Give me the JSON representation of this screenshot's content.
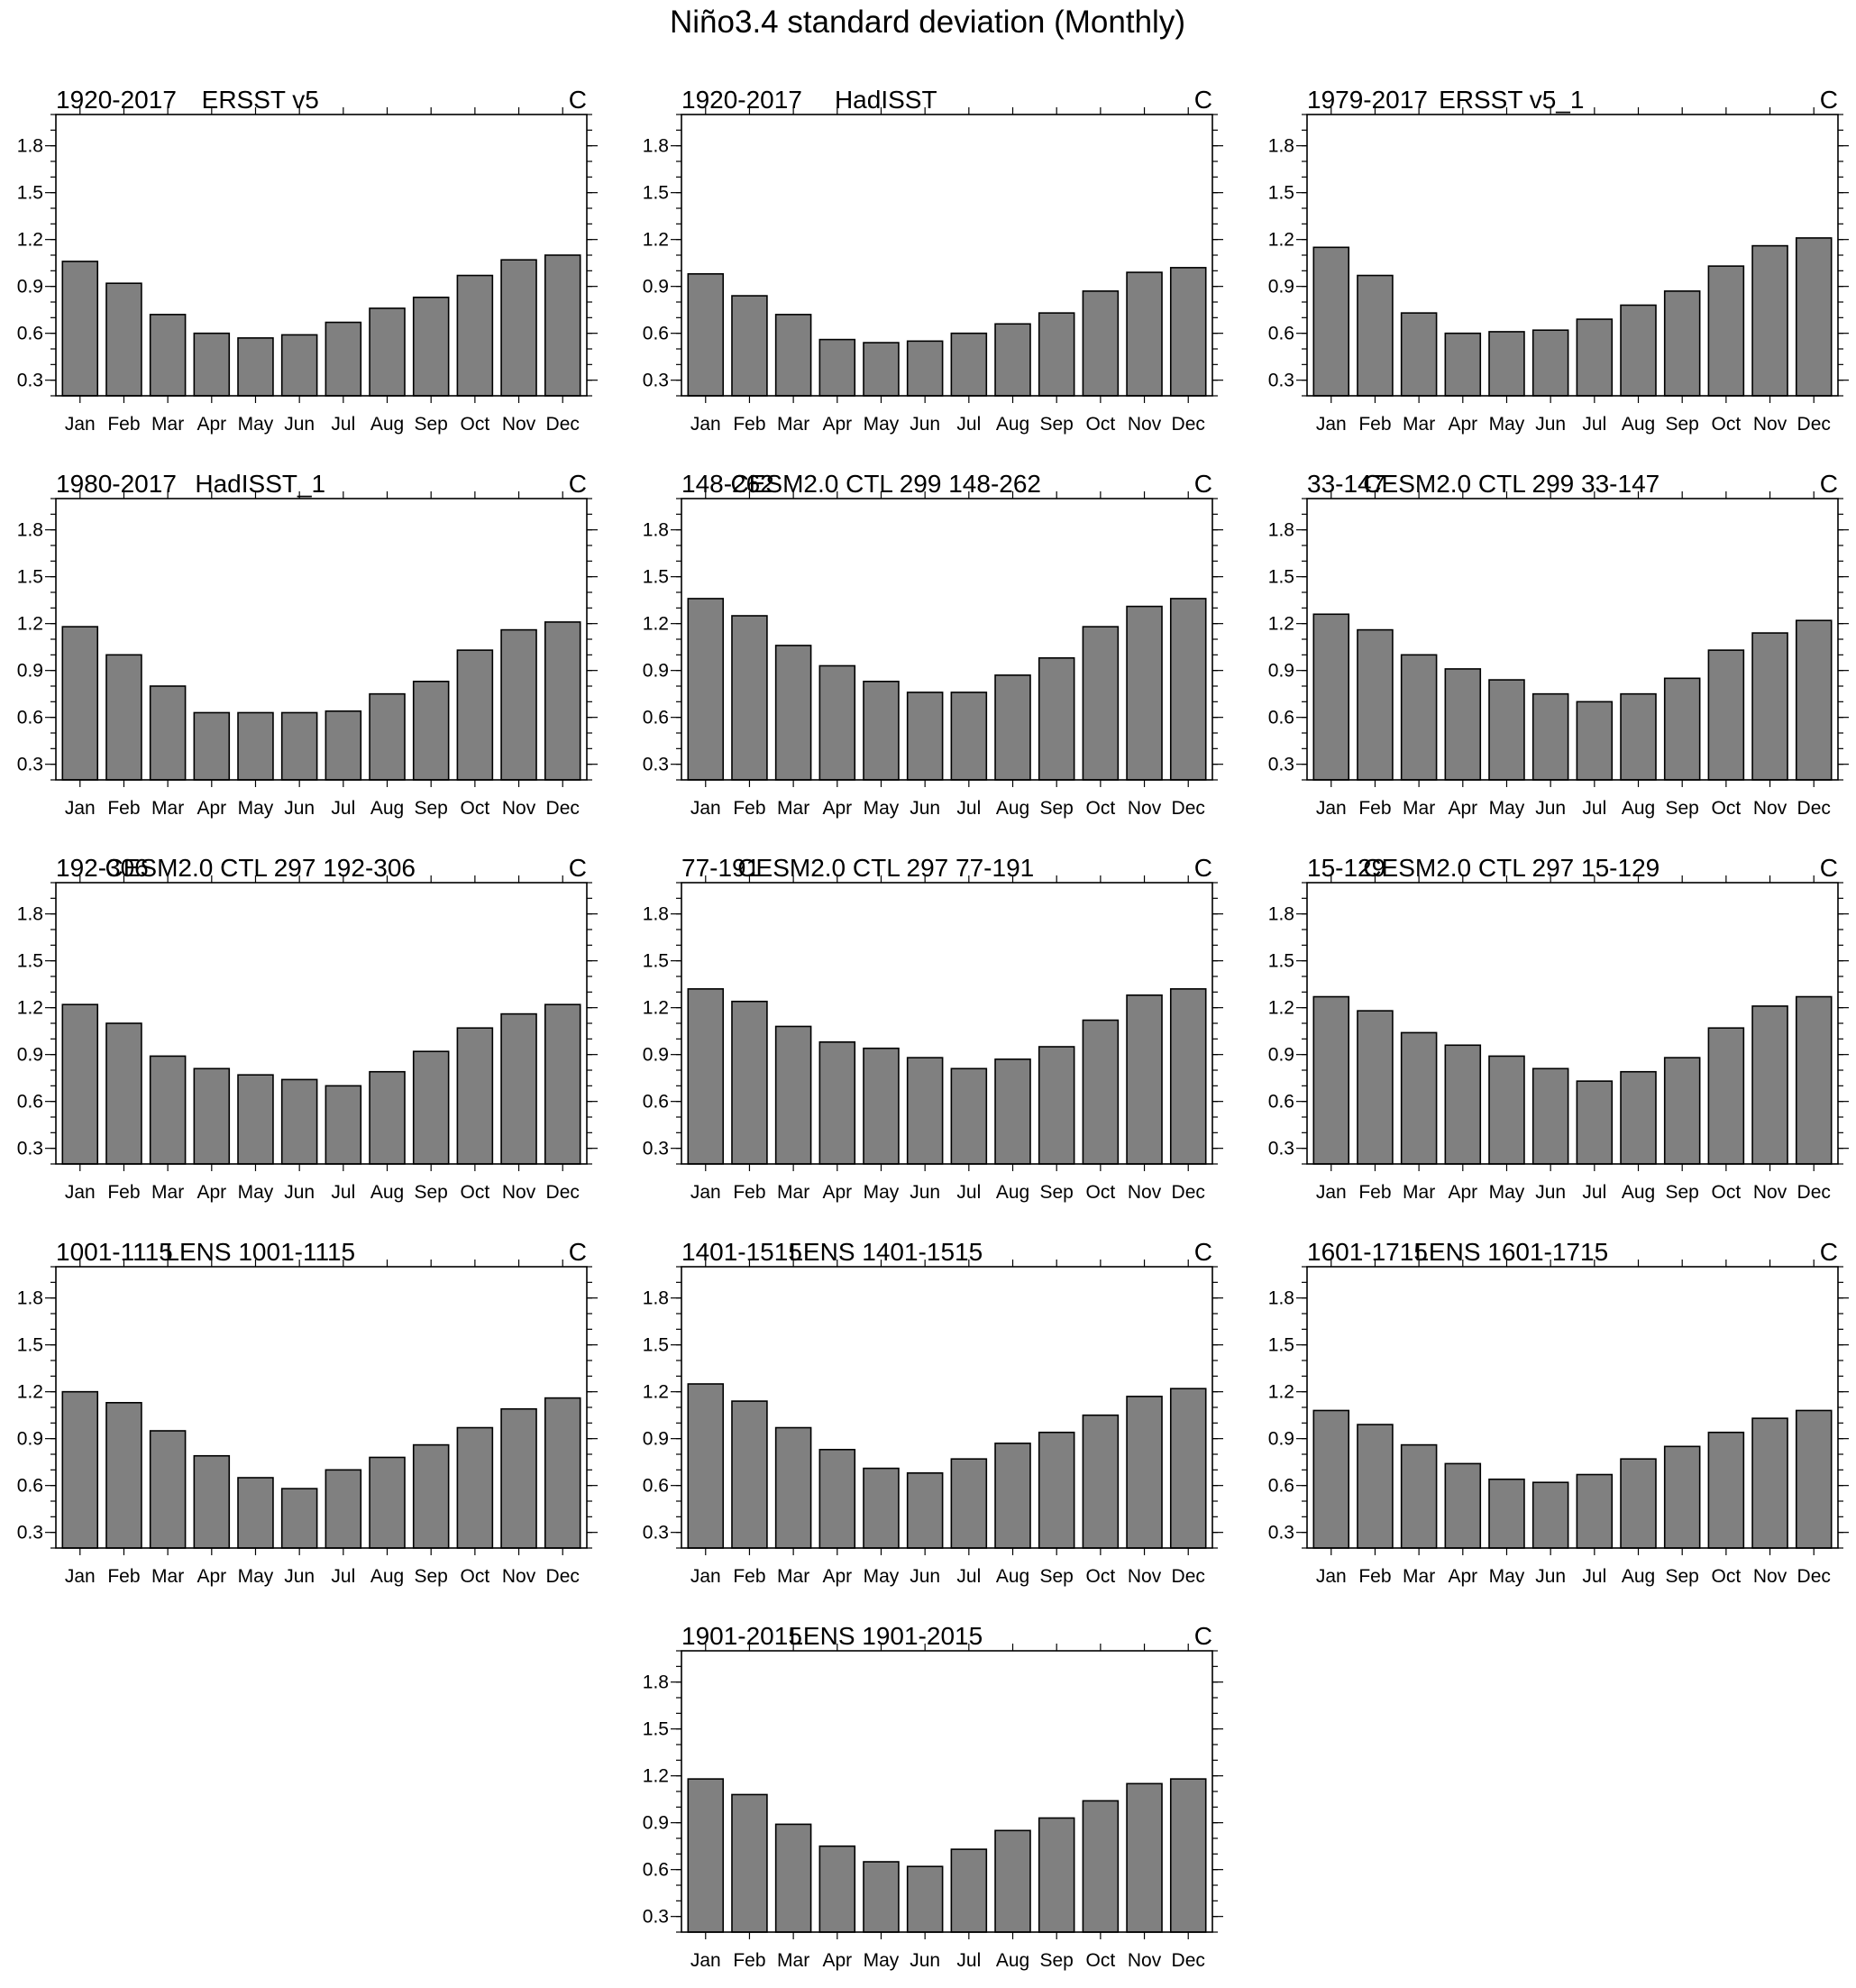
{
  "title": "Niño3.4 standard deviation (Monthly)",
  "chart_data": [
    {
      "type": "bar",
      "period": "1920-2017",
      "title": "ERSST v5",
      "units": "C",
      "ylim": [
        0.2,
        2.0
      ],
      "yticks": [
        "0.3",
        "0.6",
        "0.9",
        "1.2",
        "1.5",
        "1.8"
      ],
      "categories": [
        "Jan",
        "Feb",
        "Mar",
        "Apr",
        "May",
        "Jun",
        "Jul",
        "Aug",
        "Sep",
        "Oct",
        "Nov",
        "Dec"
      ],
      "values": [
        1.06,
        0.92,
        0.72,
        0.6,
        0.57,
        0.59,
        0.67,
        0.76,
        0.83,
        0.97,
        1.07,
        1.1
      ]
    },
    {
      "type": "bar",
      "period": "1920-2017",
      "title": "HadISST",
      "units": "C",
      "ylim": [
        0.2,
        2.0
      ],
      "yticks": [
        "0.3",
        "0.6",
        "0.9",
        "1.2",
        "1.5",
        "1.8"
      ],
      "categories": [
        "Jan",
        "Feb",
        "Mar",
        "Apr",
        "May",
        "Jun",
        "Jul",
        "Aug",
        "Sep",
        "Oct",
        "Nov",
        "Dec"
      ],
      "values": [
        0.98,
        0.84,
        0.72,
        0.56,
        0.54,
        0.55,
        0.6,
        0.66,
        0.73,
        0.87,
        0.99,
        1.02
      ]
    },
    {
      "type": "bar",
      "period": "1979-2017",
      "title": "ERSST v5_1",
      "units": "C",
      "ylim": [
        0.2,
        2.0
      ],
      "yticks": [
        "0.3",
        "0.6",
        "0.9",
        "1.2",
        "1.5",
        "1.8"
      ],
      "categories": [
        "Jan",
        "Feb",
        "Mar",
        "Apr",
        "May",
        "Jun",
        "Jul",
        "Aug",
        "Sep",
        "Oct",
        "Nov",
        "Dec"
      ],
      "values": [
        1.15,
        0.97,
        0.73,
        0.6,
        0.61,
        0.62,
        0.69,
        0.78,
        0.87,
        1.03,
        1.16,
        1.21
      ]
    },
    {
      "type": "bar",
      "period": "1980-2017",
      "title": "HadISST_1",
      "units": "C",
      "ylim": [
        0.2,
        2.0
      ],
      "yticks": [
        "0.3",
        "0.6",
        "0.9",
        "1.2",
        "1.5",
        "1.8"
      ],
      "categories": [
        "Jan",
        "Feb",
        "Mar",
        "Apr",
        "May",
        "Jun",
        "Jul",
        "Aug",
        "Sep",
        "Oct",
        "Nov",
        "Dec"
      ],
      "values": [
        1.18,
        1.0,
        0.8,
        0.63,
        0.63,
        0.63,
        0.64,
        0.75,
        0.83,
        1.03,
        1.16,
        1.21
      ]
    },
    {
      "type": "bar",
      "period": "148-262",
      "title": "CESM2.0 CTL 299 148-262",
      "units": "C",
      "ylim": [
        0.2,
        2.0
      ],
      "yticks": [
        "0.3",
        "0.6",
        "0.9",
        "1.2",
        "1.5",
        "1.8"
      ],
      "categories": [
        "Jan",
        "Feb",
        "Mar",
        "Apr",
        "May",
        "Jun",
        "Jul",
        "Aug",
        "Sep",
        "Oct",
        "Nov",
        "Dec"
      ],
      "values": [
        1.36,
        1.25,
        1.06,
        0.93,
        0.83,
        0.76,
        0.76,
        0.87,
        0.98,
        1.18,
        1.31,
        1.36
      ]
    },
    {
      "type": "bar",
      "period": "33-147",
      "title": "CESM2.0 CTL 299 33-147",
      "units": "C",
      "ylim": [
        0.2,
        2.0
      ],
      "yticks": [
        "0.3",
        "0.6",
        "0.9",
        "1.2",
        "1.5",
        "1.8"
      ],
      "categories": [
        "Jan",
        "Feb",
        "Mar",
        "Apr",
        "May",
        "Jun",
        "Jul",
        "Aug",
        "Sep",
        "Oct",
        "Nov",
        "Dec"
      ],
      "values": [
        1.26,
        1.16,
        1.0,
        0.91,
        0.84,
        0.75,
        0.7,
        0.75,
        0.85,
        1.03,
        1.14,
        1.22
      ]
    },
    {
      "type": "bar",
      "period": "192-306",
      "title": "CESM2.0 CTL 297 192-306",
      "units": "C",
      "ylim": [
        0.2,
        2.0
      ],
      "yticks": [
        "0.3",
        "0.6",
        "0.9",
        "1.2",
        "1.5",
        "1.8"
      ],
      "categories": [
        "Jan",
        "Feb",
        "Mar",
        "Apr",
        "May",
        "Jun",
        "Jul",
        "Aug",
        "Sep",
        "Oct",
        "Nov",
        "Dec"
      ],
      "values": [
        1.22,
        1.1,
        0.89,
        0.81,
        0.77,
        0.74,
        0.7,
        0.79,
        0.92,
        1.07,
        1.16,
        1.22
      ]
    },
    {
      "type": "bar",
      "period": "77-191",
      "title": "CESM2.0 CTL 297 77-191",
      "units": "C",
      "ylim": [
        0.2,
        2.0
      ],
      "yticks": [
        "0.3",
        "0.6",
        "0.9",
        "1.2",
        "1.5",
        "1.8"
      ],
      "categories": [
        "Jan",
        "Feb",
        "Mar",
        "Apr",
        "May",
        "Jun",
        "Jul",
        "Aug",
        "Sep",
        "Oct",
        "Nov",
        "Dec"
      ],
      "values": [
        1.32,
        1.24,
        1.08,
        0.98,
        0.94,
        0.88,
        0.81,
        0.87,
        0.95,
        1.12,
        1.28,
        1.32
      ]
    },
    {
      "type": "bar",
      "period": "15-129",
      "title": "CESM2.0 CTL 297 15-129",
      "units": "C",
      "ylim": [
        0.2,
        2.0
      ],
      "yticks": [
        "0.3",
        "0.6",
        "0.9",
        "1.2",
        "1.5",
        "1.8"
      ],
      "categories": [
        "Jan",
        "Feb",
        "Mar",
        "Apr",
        "May",
        "Jun",
        "Jul",
        "Aug",
        "Sep",
        "Oct",
        "Nov",
        "Dec"
      ],
      "values": [
        1.27,
        1.18,
        1.04,
        0.96,
        0.89,
        0.81,
        0.73,
        0.79,
        0.88,
        1.07,
        1.21,
        1.27
      ]
    },
    {
      "type": "bar",
      "period": "1001-1115",
      "title": "LENS 1001-1115",
      "units": "C",
      "ylim": [
        0.2,
        2.0
      ],
      "yticks": [
        "0.3",
        "0.6",
        "0.9",
        "1.2",
        "1.5",
        "1.8"
      ],
      "categories": [
        "Jan",
        "Feb",
        "Mar",
        "Apr",
        "May",
        "Jun",
        "Jul",
        "Aug",
        "Sep",
        "Oct",
        "Nov",
        "Dec"
      ],
      "values": [
        1.2,
        1.13,
        0.95,
        0.79,
        0.65,
        0.58,
        0.7,
        0.78,
        0.86,
        0.97,
        1.09,
        1.16
      ]
    },
    {
      "type": "bar",
      "period": "1401-1515",
      "title": "LENS 1401-1515",
      "units": "C",
      "ylim": [
        0.2,
        2.0
      ],
      "yticks": [
        "0.3",
        "0.6",
        "0.9",
        "1.2",
        "1.5",
        "1.8"
      ],
      "categories": [
        "Jan",
        "Feb",
        "Mar",
        "Apr",
        "May",
        "Jun",
        "Jul",
        "Aug",
        "Sep",
        "Oct",
        "Nov",
        "Dec"
      ],
      "values": [
        1.25,
        1.14,
        0.97,
        0.83,
        0.71,
        0.68,
        0.77,
        0.87,
        0.94,
        1.05,
        1.17,
        1.22
      ]
    },
    {
      "type": "bar",
      "period": "1601-1715",
      "title": "LENS 1601-1715",
      "units": "C",
      "ylim": [
        0.2,
        2.0
      ],
      "yticks": [
        "0.3",
        "0.6",
        "0.9",
        "1.2",
        "1.5",
        "1.8"
      ],
      "categories": [
        "Jan",
        "Feb",
        "Mar",
        "Apr",
        "May",
        "Jun",
        "Jul",
        "Aug",
        "Sep",
        "Oct",
        "Nov",
        "Dec"
      ],
      "values": [
        1.08,
        0.99,
        0.86,
        0.74,
        0.64,
        0.62,
        0.67,
        0.77,
        0.85,
        0.94,
        1.03,
        1.08
      ]
    },
    {
      "type": "bar",
      "period": "1901-2015",
      "title": "LENS 1901-2015",
      "units": "C",
      "ylim": [
        0.2,
        2.0
      ],
      "yticks": [
        "0.3",
        "0.6",
        "0.9",
        "1.2",
        "1.5",
        "1.8"
      ],
      "categories": [
        "Jan",
        "Feb",
        "Mar",
        "Apr",
        "May",
        "Jun",
        "Jul",
        "Aug",
        "Sep",
        "Oct",
        "Nov",
        "Dec"
      ],
      "values": [
        1.18,
        1.08,
        0.89,
        0.75,
        0.65,
        0.62,
        0.73,
        0.85,
        0.93,
        1.04,
        1.15,
        1.18
      ]
    }
  ]
}
